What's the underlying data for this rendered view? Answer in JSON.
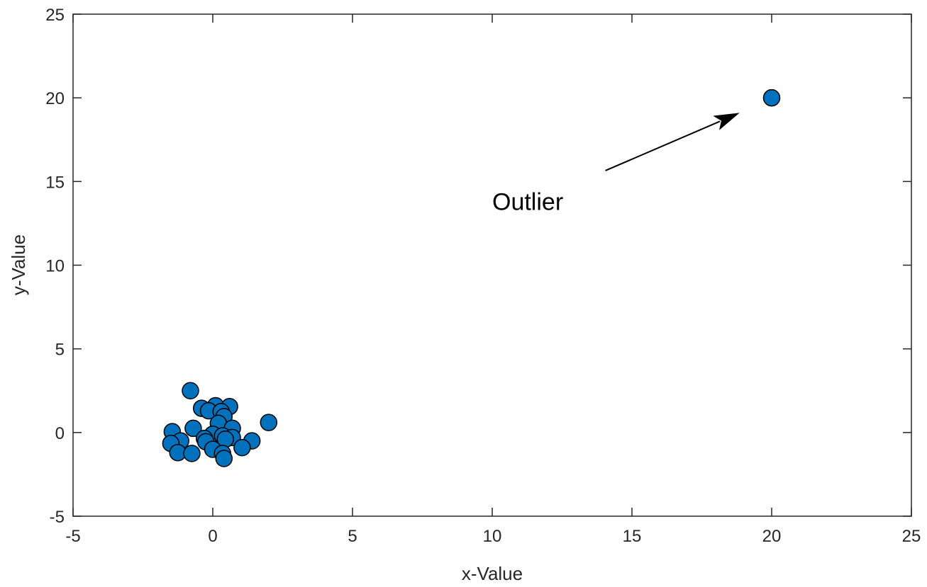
{
  "chart_data": {
    "type": "scatter",
    "xlabel": "x-Value",
    "ylabel": "y-Value",
    "xlim": [
      -5,
      25
    ],
    "ylim": [
      -5,
      25
    ],
    "xticks": [
      "-5",
      "0",
      "5",
      "10",
      "15",
      "20",
      "25"
    ],
    "yticks": [
      "-5",
      "0",
      "5",
      "10",
      "15",
      "20",
      "25"
    ],
    "grid": false,
    "marker_color": "#0072BD",
    "marker_edge_color": "#000000",
    "points": [
      {
        "x": -0.8,
        "y": 2.5
      },
      {
        "x": 0.1,
        "y": 1.6
      },
      {
        "x": 0.6,
        "y": 1.55
      },
      {
        "x": -0.4,
        "y": 1.45
      },
      {
        "x": -0.15,
        "y": 1.3
      },
      {
        "x": 0.3,
        "y": 1.25
      },
      {
        "x": 0.4,
        "y": 0.95
      },
      {
        "x": 2.0,
        "y": 0.6
      },
      {
        "x": 0.2,
        "y": 0.55
      },
      {
        "x": -0.7,
        "y": 0.25
      },
      {
        "x": 0.7,
        "y": 0.25
      },
      {
        "x": -1.45,
        "y": 0.05
      },
      {
        "x": 0.0,
        "y": -0.1
      },
      {
        "x": 0.35,
        "y": -0.2
      },
      {
        "x": 0.7,
        "y": -0.3
      },
      {
        "x": -0.3,
        "y": -0.35
      },
      {
        "x": 0.45,
        "y": -0.4
      },
      {
        "x": 1.4,
        "y": -0.5
      },
      {
        "x": -1.15,
        "y": -0.5
      },
      {
        "x": -0.25,
        "y": -0.55
      },
      {
        "x": -1.5,
        "y": -0.65
      },
      {
        "x": 1.05,
        "y": -0.9
      },
      {
        "x": 0.0,
        "y": -1.0
      },
      {
        "x": -1.25,
        "y": -1.2
      },
      {
        "x": -0.75,
        "y": -1.25
      },
      {
        "x": 0.35,
        "y": -1.25
      },
      {
        "x": 0.4,
        "y": -1.55
      },
      {
        "x": 20.0,
        "y": 20.0
      }
    ],
    "annotations": [
      {
        "text": "Outlier",
        "text_x": 10.0,
        "text_y": 13.8,
        "arrow_from": [
          14.05,
          15.65
        ],
        "arrow_to": [
          18.85,
          19.1
        ]
      }
    ]
  }
}
